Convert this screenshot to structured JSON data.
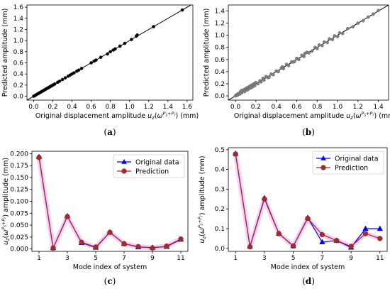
{
  "chart_data": [
    {
      "id": "a",
      "type": "scatter",
      "panel_label": "(a)",
      "xlabel": "Original displacement amplitude u_z(ω^{P_s+P_r}) (mm)",
      "ylabel": "Predicted amplitude (mm)",
      "xlim": [
        -0.07,
        1.66
      ],
      "ylim": [
        -0.07,
        1.64
      ],
      "xticks": [
        0.0,
        0.2,
        0.4,
        0.6,
        0.8,
        1.0,
        1.2,
        1.4,
        1.6
      ],
      "yticks": [
        0.0,
        0.2,
        0.4,
        0.6,
        0.8,
        1.0,
        1.2,
        1.4,
        1.6
      ],
      "tick_format": 1,
      "grid": false,
      "reference_line": [
        [
          -0.07,
          -0.07
        ],
        [
          1.66,
          1.66
        ]
      ],
      "marker_color": "#000000",
      "points": [
        [
          0.0,
          0.0
        ],
        [
          0.01,
          0.01
        ],
        [
          0.02,
          0.02
        ],
        [
          0.03,
          0.03
        ],
        [
          0.04,
          0.04
        ],
        [
          0.05,
          0.05
        ],
        [
          0.06,
          0.06
        ],
        [
          0.07,
          0.07
        ],
        [
          0.08,
          0.08
        ],
        [
          0.09,
          0.09
        ],
        [
          0.1,
          0.1
        ],
        [
          0.11,
          0.11
        ],
        [
          0.12,
          0.12
        ],
        [
          0.13,
          0.13
        ],
        [
          0.14,
          0.14
        ],
        [
          0.15,
          0.15
        ],
        [
          0.16,
          0.16
        ],
        [
          0.17,
          0.17
        ],
        [
          0.18,
          0.18
        ],
        [
          0.19,
          0.19
        ],
        [
          0.2,
          0.2
        ],
        [
          0.21,
          0.21
        ],
        [
          0.22,
          0.22
        ],
        [
          0.25,
          0.25
        ],
        [
          0.27,
          0.27
        ],
        [
          0.3,
          0.3
        ],
        [
          0.33,
          0.33
        ],
        [
          0.36,
          0.36
        ],
        [
          0.38,
          0.38
        ],
        [
          0.4,
          0.4
        ],
        [
          0.42,
          0.42
        ],
        [
          0.45,
          0.45
        ],
        [
          0.47,
          0.47
        ],
        [
          0.5,
          0.5
        ],
        [
          0.6,
          0.6
        ],
        [
          0.63,
          0.63
        ],
        [
          0.65,
          0.65
        ],
        [
          0.7,
          0.7
        ],
        [
          0.77,
          0.76
        ],
        [
          0.8,
          0.8
        ],
        [
          0.83,
          0.83
        ],
        [
          0.85,
          0.85
        ],
        [
          0.9,
          0.9
        ],
        [
          0.95,
          0.95
        ],
        [
          1.02,
          1.02
        ],
        [
          1.07,
          1.08
        ],
        [
          1.08,
          1.1
        ],
        [
          1.25,
          1.25
        ],
        [
          1.55,
          1.55
        ]
      ]
    },
    {
      "id": "b",
      "type": "scatter",
      "panel_label": "(b)",
      "xlabel": "Original displacement amplitude u_z(ω^{P_s+P_r}) (mm)",
      "ylabel": "Predicted amplitude (mm)",
      "xlim": [
        -0.07,
        1.5
      ],
      "ylim": [
        -0.07,
        1.5
      ],
      "xticks": [
        0.0,
        0.2,
        0.4,
        0.6,
        0.8,
        1.0,
        1.2,
        1.4
      ],
      "yticks": [
        0.0,
        0.2,
        0.4,
        0.6,
        0.8,
        1.0,
        1.2,
        1.4
      ],
      "tick_format": 1,
      "grid": false,
      "reference_line": [
        [
          -0.07,
          -0.07
        ],
        [
          1.5,
          1.5
        ]
      ],
      "marker_color": "#808080",
      "points": [
        [
          0.0,
          0.0
        ],
        [
          0.01,
          0.02
        ],
        [
          0.02,
          0.01
        ],
        [
          0.03,
          0.04
        ],
        [
          0.04,
          0.03
        ],
        [
          0.05,
          0.07
        ],
        [
          0.06,
          0.05
        ],
        [
          0.07,
          0.08
        ],
        [
          0.08,
          0.1
        ],
        [
          0.09,
          0.07
        ],
        [
          0.1,
          0.12
        ],
        [
          0.11,
          0.1
        ],
        [
          0.12,
          0.14
        ],
        [
          0.13,
          0.12
        ],
        [
          0.14,
          0.16
        ],
        [
          0.15,
          0.13
        ],
        [
          0.16,
          0.18
        ],
        [
          0.17,
          0.15
        ],
        [
          0.18,
          0.2
        ],
        [
          0.19,
          0.17
        ],
        [
          0.2,
          0.22
        ],
        [
          0.22,
          0.2
        ],
        [
          0.24,
          0.25
        ],
        [
          0.25,
          0.23
        ],
        [
          0.27,
          0.29
        ],
        [
          0.28,
          0.26
        ],
        [
          0.3,
          0.32
        ],
        [
          0.32,
          0.3
        ],
        [
          0.35,
          0.36
        ],
        [
          0.37,
          0.35
        ],
        [
          0.4,
          0.41
        ],
        [
          0.42,
          0.4
        ],
        [
          0.45,
          0.46
        ],
        [
          0.47,
          0.45
        ],
        [
          0.5,
          0.52
        ],
        [
          0.52,
          0.5
        ],
        [
          0.55,
          0.56
        ],
        [
          0.57,
          0.56
        ],
        [
          0.6,
          0.62
        ],
        [
          0.62,
          0.6
        ],
        [
          0.65,
          0.67
        ],
        [
          0.67,
          0.65
        ],
        [
          0.7,
          0.72
        ],
        [
          0.72,
          0.71
        ],
        [
          0.75,
          0.74
        ],
        [
          0.78,
          0.8
        ],
        [
          0.8,
          0.78
        ],
        [
          0.82,
          0.84
        ],
        [
          0.85,
          0.83
        ],
        [
          0.87,
          0.89
        ],
        [
          0.9,
          0.88
        ],
        [
          0.92,
          0.94
        ],
        [
          0.95,
          0.93
        ],
        [
          0.97,
          0.99
        ],
        [
          1.0,
          0.98
        ],
        [
          1.02,
          1.04
        ],
        [
          1.05,
          1.03
        ],
        [
          1.1,
          1.11
        ],
        [
          1.15,
          1.14
        ],
        [
          1.2,
          1.2
        ],
        [
          1.25,
          1.24
        ],
        [
          1.3,
          1.3
        ],
        [
          1.35,
          1.35
        ],
        [
          1.4,
          1.41
        ],
        [
          0.12,
          0.1
        ],
        [
          0.06,
          0.09
        ],
        [
          0.33,
          0.31
        ],
        [
          0.46,
          0.48
        ],
        [
          0.58,
          0.57
        ],
        [
          0.68,
          0.7
        ]
      ]
    },
    {
      "id": "c",
      "type": "line",
      "panel_label": "(c)",
      "xlabel": "Mode index of system",
      "ylabel": "u_z(ω^{P_s+P_r}) amplitude (mm)",
      "x": [
        1,
        2,
        3,
        4,
        5,
        6,
        7,
        8,
        9,
        10,
        11
      ],
      "xlim": [
        0.5,
        11.5
      ],
      "ylim": [
        -0.005,
        0.205
      ],
      "xticks": [
        1,
        3,
        5,
        7,
        9,
        11
      ],
      "yticks": [
        0.0,
        0.025,
        0.05,
        0.075,
        0.1,
        0.125,
        0.15,
        0.175,
        0.2
      ],
      "tick_format": 3,
      "grid": false,
      "legend": "top-right",
      "series": [
        {
          "name": "Original data",
          "color": "#0000ff",
          "marker": "triangle",
          "values": [
            0.193,
            0.002,
            0.069,
            0.013,
            0.003,
            0.035,
            0.011,
            0.004,
            0.003,
            0.005,
            0.02
          ]
        },
        {
          "name": "Prediction",
          "color": "#a52a2a",
          "marker": "circle",
          "values": [
            0.192,
            0.002,
            0.068,
            0.014,
            0.004,
            0.035,
            0.011,
            0.005,
            0.002,
            0.006,
            0.021
          ]
        }
      ]
    },
    {
      "id": "d",
      "type": "line",
      "panel_label": "(d)",
      "xlabel": "Mode index of system",
      "ylabel": "u_z(ω^{P_s+P_r}) amplitude (mm)",
      "x": [
        1,
        2,
        3,
        4,
        5,
        6,
        7,
        8,
        9,
        10,
        11
      ],
      "xlim": [
        0.5,
        11.5
      ],
      "ylim": [
        -0.015,
        0.51
      ],
      "xticks": [
        1,
        3,
        5,
        7,
        9,
        11
      ],
      "yticks": [
        0.0,
        0.1,
        0.2,
        0.3,
        0.4,
        0.5
      ],
      "tick_format": 1,
      "grid": false,
      "legend": "top-right",
      "series": [
        {
          "name": "Original data",
          "color": "#0000ff",
          "marker": "triangle",
          "values": [
            0.48,
            0.01,
            0.255,
            0.075,
            0.012,
            0.155,
            0.032,
            0.04,
            0.005,
            0.1,
            0.1
          ]
        },
        {
          "name": "Prediction",
          "color": "#a52a2a",
          "marker": "circle",
          "values": [
            0.478,
            0.008,
            0.25,
            0.075,
            0.012,
            0.152,
            0.07,
            0.04,
            0.01,
            0.075,
            0.05
          ]
        }
      ]
    }
  ]
}
